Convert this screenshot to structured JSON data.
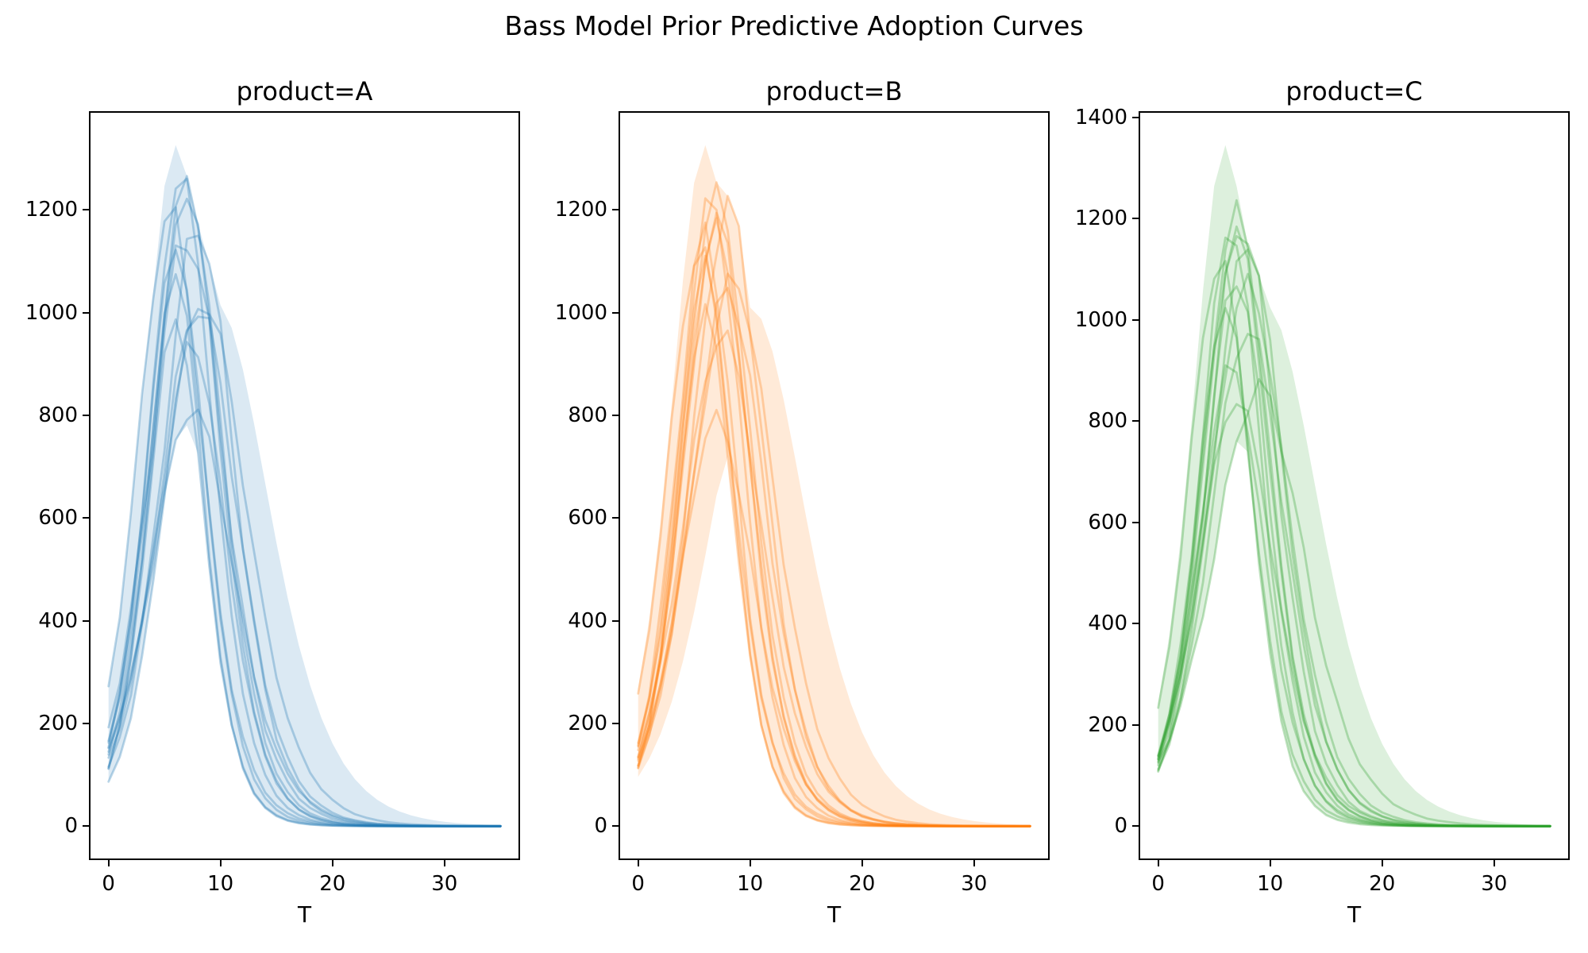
{
  "figure": {
    "title": "Bass Model Prior Predictive Adoption Curves",
    "background_color": "#ffffff",
    "text_color": "#000000",
    "spine_color": "#000000"
  },
  "chart_data": [
    {
      "type": "line",
      "title": "product=A",
      "xlabel": "T",
      "color": "#1f77b4",
      "line_alpha": 0.3,
      "fill_alpha": 0.16,
      "line_width": 2.8,
      "xlim": [
        -1.75,
        36.75
      ],
      "ylim": [
        -66,
        1392
      ],
      "x_ticks": [
        0,
        10,
        20,
        30
      ],
      "y_ticks": [
        0,
        200,
        400,
        600,
        800,
        1000,
        1200
      ],
      "t_range": [
        0,
        35
      ],
      "t_step": 1,
      "grid": false,
      "legend": "none",
      "model": "adopters(t) = peak * sech^2(b*(t-t_peak)/2) * (1 + wiggle*sin(1.9*t + phase))",
      "curves": [
        {
          "peak": 1270,
          "t_peak": 6.5,
          "b": 0.52,
          "wiggle": 0.01,
          "phase": 0.5
        },
        {
          "peak": 1258,
          "t_peak": 7.0,
          "b": 0.48,
          "wiggle": 0.02,
          "phase": 2.1
        },
        {
          "peak": 1240,
          "t_peak": 7.0,
          "b": 0.5,
          "wiggle": 0.015,
          "phase": 4.0
        },
        {
          "peak": 1172,
          "t_peak": 8.0,
          "b": 0.46,
          "wiggle": 0.03,
          "phase": 1.2
        },
        {
          "peak": 1152,
          "t_peak": 7.0,
          "b": 0.44,
          "wiggle": 0.035,
          "phase": 3.3
        },
        {
          "peak": 1130,
          "t_peak": 6.0,
          "b": 0.55,
          "wiggle": 0.01,
          "phase": 5.1
        },
        {
          "peak": 1022,
          "t_peak": 8.5,
          "b": 0.38,
          "wiggle": 0.02,
          "phase": 0.8
        },
        {
          "peak": 1014,
          "t_peak": 8.0,
          "b": 0.42,
          "wiggle": 0.025,
          "phase": 2.6
        },
        {
          "peak": 988,
          "t_peak": 6.0,
          "b": 0.58,
          "wiggle": 0.015,
          "phase": 4.4
        },
        {
          "peak": 945,
          "t_peak": 7.5,
          "b": 0.5,
          "wiggle": 0.02,
          "phase": 1.7
        },
        {
          "peak": 815,
          "t_peak": 7.5,
          "b": 0.4,
          "wiggle": 0.02,
          "phase": 3.9
        },
        {
          "peak": 1085,
          "t_peak": 6.0,
          "b": 0.6,
          "wiggle": 0.01,
          "phase": 5.6
        },
        {
          "peak": 1200,
          "t_peak": 5.5,
          "b": 0.5,
          "wiggle": 0.02,
          "phase": 2.9
        }
      ],
      "envelope_curves": [
        {
          "peak": 1326,
          "t_peak": 6.0,
          "b": 0.5,
          "wiggle": 0,
          "phase": 0
        },
        {
          "peak": 1020,
          "t_peak": 9.5,
          "b": 0.3,
          "wiggle": 0,
          "phase": 0
        },
        {
          "peak": 780,
          "t_peak": 7.0,
          "b": 0.36,
          "wiggle": 0,
          "phase": 0
        }
      ]
    },
    {
      "type": "line",
      "title": "product=B",
      "xlabel": "T",
      "color": "#ff7f0e",
      "line_alpha": 0.3,
      "fill_alpha": 0.16,
      "line_width": 2.8,
      "xlim": [
        -1.75,
        36.75
      ],
      "ylim": [
        -66,
        1392
      ],
      "x_ticks": [
        0,
        10,
        20,
        30
      ],
      "y_ticks": [
        0,
        200,
        400,
        600,
        800,
        1000,
        1200
      ],
      "t_range": [
        0,
        35
      ],
      "t_step": 1,
      "grid": false,
      "legend": "none",
      "model": "adopters(t) = peak * sech^2(b*(t-t_peak)/2) * (1 + wiggle*sin(1.9*t + phase))",
      "curves": [
        {
          "peak": 1235,
          "t_peak": 7.0,
          "b": 0.48,
          "wiggle": 0.015,
          "phase": 0.9
        },
        {
          "peak": 1220,
          "t_peak": 6.5,
          "b": 0.52,
          "wiggle": 0.02,
          "phase": 2.4
        },
        {
          "peak": 1208,
          "t_peak": 8.0,
          "b": 0.46,
          "wiggle": 0.03,
          "phase": 4.2
        },
        {
          "peak": 1165,
          "t_peak": 7.0,
          "b": 0.5,
          "wiggle": 0.02,
          "phase": 1.5
        },
        {
          "peak": 1152,
          "t_peak": 6.0,
          "b": 0.55,
          "wiggle": 0.035,
          "phase": 3.7
        },
        {
          "peak": 1065,
          "t_peak": 8.5,
          "b": 0.4,
          "wiggle": 0.02,
          "phase": 5.3
        },
        {
          "peak": 1045,
          "t_peak": 8.0,
          "b": 0.44,
          "wiggle": 0.025,
          "phase": 0.4
        },
        {
          "peak": 1005,
          "t_peak": 6.0,
          "b": 0.58,
          "wiggle": 0.015,
          "phase": 2.0
        },
        {
          "peak": 960,
          "t_peak": 7.5,
          "b": 0.42,
          "wiggle": 0.02,
          "phase": 4.6
        },
        {
          "peak": 795,
          "t_peak": 7.0,
          "b": 0.45,
          "wiggle": 0.02,
          "phase": 1.1
        },
        {
          "peak": 1100,
          "t_peak": 6.0,
          "b": 0.6,
          "wiggle": 0.01,
          "phase": 3.0
        },
        {
          "peak": 1188,
          "t_peak": 7.0,
          "b": 0.5,
          "wiggle": 0.02,
          "phase": 5.8
        },
        {
          "peak": 1125,
          "t_peak": 5.5,
          "b": 0.5,
          "wiggle": 0.02,
          "phase": 2.2
        }
      ],
      "envelope_curves": [
        {
          "peak": 1326,
          "t_peak": 6.0,
          "b": 0.48,
          "wiggle": 0,
          "phase": 0
        },
        {
          "peak": 1010,
          "t_peak": 10.0,
          "b": 0.3,
          "wiggle": 0,
          "phase": 0
        },
        {
          "peak": 900,
          "t_peak": 10.5,
          "b": 0.34,
          "wiggle": 0,
          "phase": 0
        }
      ]
    },
    {
      "type": "line",
      "title": "product=C",
      "xlabel": "T",
      "color": "#2ca02c",
      "line_alpha": 0.3,
      "fill_alpha": 0.16,
      "line_width": 2.8,
      "xlim": [
        -1.75,
        36.75
      ],
      "ylim": [
        -67,
        1412
      ],
      "x_ticks": [
        0,
        10,
        20,
        30
      ],
      "y_ticks": [
        0,
        200,
        400,
        600,
        800,
        1000,
        1200,
        1400
      ],
      "t_range": [
        0,
        35
      ],
      "t_step": 1,
      "grid": false,
      "legend": "none",
      "model": "adopters(t) = peak * sech^2(b*(t-t_peak)/2) * (1 + wiggle*sin(1.9*t + phase))",
      "curves": [
        {
          "peak": 1218,
          "t_peak": 7.0,
          "b": 0.5,
          "wiggle": 0.015,
          "phase": 0.7
        },
        {
          "peak": 1198,
          "t_peak": 7.5,
          "b": 0.48,
          "wiggle": 0.035,
          "phase": 2.8
        },
        {
          "peak": 1188,
          "t_peak": 6.5,
          "b": 0.54,
          "wiggle": 0.02,
          "phase": 4.5
        },
        {
          "peak": 1155,
          "t_peak": 8.0,
          "b": 0.46,
          "wiggle": 0.02,
          "phase": 1.3
        },
        {
          "peak": 1090,
          "t_peak": 7.0,
          "b": 0.52,
          "wiggle": 0.025,
          "phase": 3.5
        },
        {
          "peak": 1070,
          "t_peak": 8.0,
          "b": 0.42,
          "wiggle": 0.02,
          "phase": 5.5
        },
        {
          "peak": 1035,
          "t_peak": 6.0,
          "b": 0.58,
          "wiggle": 0.015,
          "phase": 0.3
        },
        {
          "peak": 865,
          "t_peak": 9.0,
          "b": 0.36,
          "wiggle": 0.03,
          "phase": 2.5
        },
        {
          "peak": 845,
          "t_peak": 7.0,
          "b": 0.44,
          "wiggle": 0.02,
          "phase": 4.8
        },
        {
          "peak": 1120,
          "t_peak": 5.5,
          "b": 0.52,
          "wiggle": 0.02,
          "phase": 1.9
        },
        {
          "peak": 985,
          "t_peak": 8.0,
          "b": 0.44,
          "wiggle": 0.025,
          "phase": 3.1
        },
        {
          "peak": 1178,
          "t_peak": 7.0,
          "b": 0.5,
          "wiggle": 0.015,
          "phase": 5.9
        },
        {
          "peak": 908,
          "t_peak": 6.5,
          "b": 0.5,
          "wiggle": 0.02,
          "phase": 2.3
        }
      ],
      "envelope_curves": [
        {
          "peak": 1345,
          "t_peak": 6.0,
          "b": 0.5,
          "wiggle": 0,
          "phase": 0
        },
        {
          "peak": 1030,
          "t_peak": 9.5,
          "b": 0.3,
          "wiggle": 0,
          "phase": 0
        },
        {
          "peak": 770,
          "t_peak": 7.5,
          "b": 0.38,
          "wiggle": 0,
          "phase": 0
        }
      ]
    }
  ]
}
